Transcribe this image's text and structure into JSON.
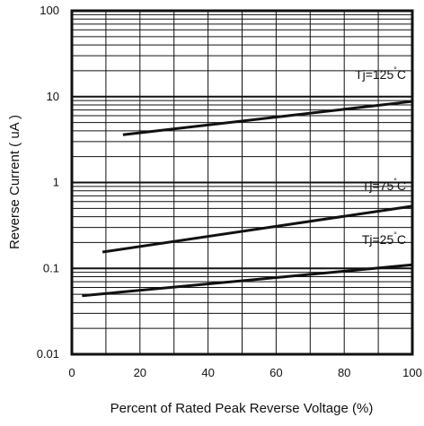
{
  "chart_data": {
    "type": "line",
    "title": "",
    "xlabel": "Percent of Rated Peak Reverse Voltage (%)",
    "ylabel": "Reverse Current ( uA )",
    "x_scale": "linear",
    "y_scale": "log",
    "xlim": [
      0,
      100
    ],
    "ylim": [
      0.01,
      100
    ],
    "x_ticks": [
      "0",
      "20",
      "40",
      "60",
      "80",
      "100"
    ],
    "y_ticks": [
      "0.01",
      "0.1",
      "1",
      "10",
      "100"
    ],
    "grid": true,
    "series": [
      {
        "name": "Tj=125°C",
        "label_text": "Tj=125",
        "x": [
          15,
          100
        ],
        "y": [
          3.6,
          8.8
        ]
      },
      {
        "name": "Tj=75°C",
        "label_text": "Tj=75",
        "x": [
          9,
          100
        ],
        "y": [
          0.155,
          0.53
        ]
      },
      {
        "name": "Tj=25°C",
        "label_text": "Tj=25",
        "x": [
          3,
          100
        ],
        "y": [
          0.048,
          0.11
        ]
      }
    ],
    "line_color": "#111111",
    "label_unit": "C"
  }
}
